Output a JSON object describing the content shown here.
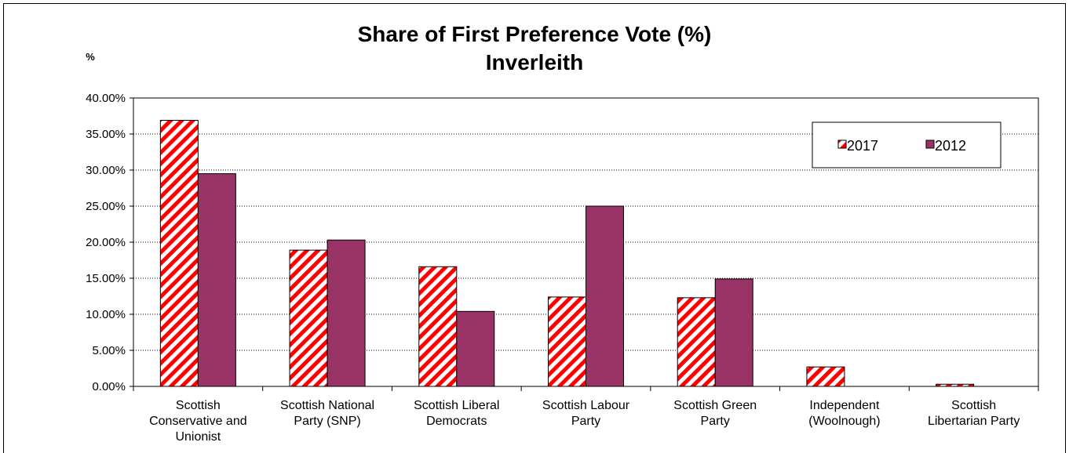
{
  "chart_data": {
    "type": "bar",
    "title": "Share of First Preference Vote (%)",
    "subtitle": "Inverleith",
    "ylabel": "%",
    "ylim": [
      0,
      40
    ],
    "yticks": [
      0,
      5,
      10,
      15,
      20,
      25,
      30,
      35,
      40
    ],
    "ytick_labels": [
      "0.00%",
      "5.00%",
      "10.00%",
      "15.00%",
      "20.00%",
      "25.00%",
      "30.00%",
      "35.00%",
      "40.00%"
    ],
    "grid": true,
    "legend_position": "top-right",
    "categories": [
      [
        "Scottish",
        "Conservative and",
        "Unionist"
      ],
      [
        "Scottish National",
        "Party (SNP)"
      ],
      [
        "Scottish Liberal",
        "Democrats"
      ],
      [
        "Scottish Labour",
        "Party"
      ],
      [
        "Scottish Green",
        "Party"
      ],
      [
        "Independent",
        "(Woolnough)"
      ],
      [
        "Scottish",
        "Libertarian Party"
      ]
    ],
    "series": [
      {
        "name": "2017",
        "values": [
          36.9,
          18.9,
          16.6,
          12.4,
          12.3,
          2.7,
          0.3
        ],
        "color": "#ff0000",
        "pattern": "diagonal-stripes"
      },
      {
        "name": "2012",
        "values": [
          29.5,
          20.3,
          10.4,
          25.0,
          14.9,
          null,
          null
        ],
        "color": "#993366",
        "pattern": "solid"
      }
    ]
  }
}
